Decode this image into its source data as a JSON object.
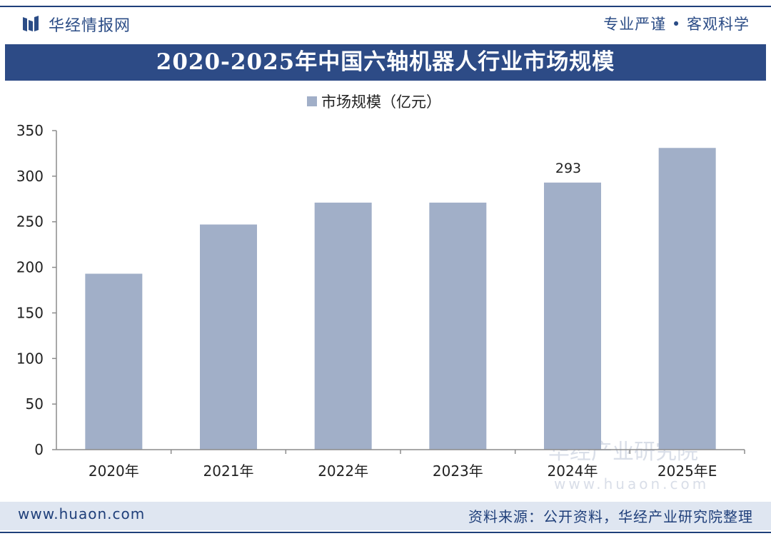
{
  "header": {
    "brand": "华经情报网",
    "slogan": "专业严谨 • 客观科学"
  },
  "colors": {
    "brand_blue": "#2d4b86",
    "bar": "#a1afc8",
    "footer_bg": "#dfe6f1"
  },
  "chart_data": {
    "type": "bar",
    "title": "2020-2025年中国六轴机器人行业市场规模",
    "categories": [
      "2020年",
      "2021年",
      "2022年",
      "2023年",
      "2024年",
      "2025年E"
    ],
    "series": [
      {
        "name": "市场规模（亿元）",
        "values": [
          193,
          247,
          271,
          271,
          293,
          331
        ]
      }
    ],
    "data_labels": [
      null,
      null,
      null,
      null,
      "293",
      null
    ],
    "yticks": [
      "0",
      "50",
      "100",
      "150",
      "200",
      "250",
      "300",
      "350"
    ],
    "ylim": [
      0,
      350
    ],
    "grid": false,
    "legend": "top-center"
  },
  "footer": {
    "url": "www.huaon.com",
    "source": "资料来源：公开资料，华经产业研究院整理"
  },
  "watermark": {
    "text": "华经产业研究院",
    "url": "www.huaon.com"
  }
}
